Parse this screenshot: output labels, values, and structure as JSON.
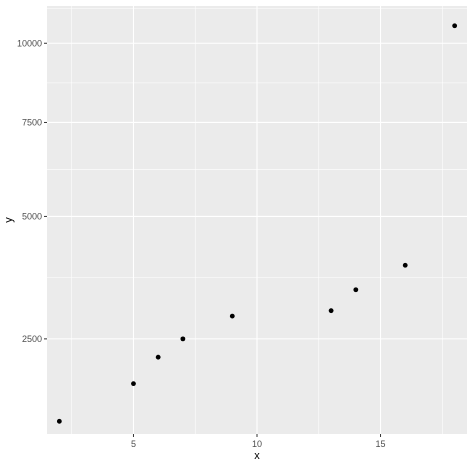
{
  "chart_data": {
    "type": "scatter",
    "title": "",
    "xlabel": "x",
    "ylabel": "y",
    "x": [
      2,
      5,
      6,
      7,
      9,
      13,
      14,
      16,
      18
    ],
    "y": [
      1300,
      1800,
      2200,
      2500,
      2900,
      3000,
      3400,
      3900,
      10600
    ],
    "xlim": [
      1.5,
      18.5
    ],
    "ylim": [
      1150,
      11300
    ],
    "y_scale": "sqrt",
    "x_ticks": [
      5,
      10,
      15
    ],
    "x_tick_labels": [
      "5",
      "10",
      "15"
    ],
    "y_ticks": [
      2500,
      5000,
      7500,
      10000
    ],
    "y_tick_labels": [
      "2500",
      "5000",
      "7500",
      "10000"
    ],
    "grid": true,
    "legend": "none",
    "colors": {
      "panel": "#ebebeb",
      "grid": "#ffffff",
      "point": "#000000",
      "tick_label": "#4d4d4d"
    }
  }
}
